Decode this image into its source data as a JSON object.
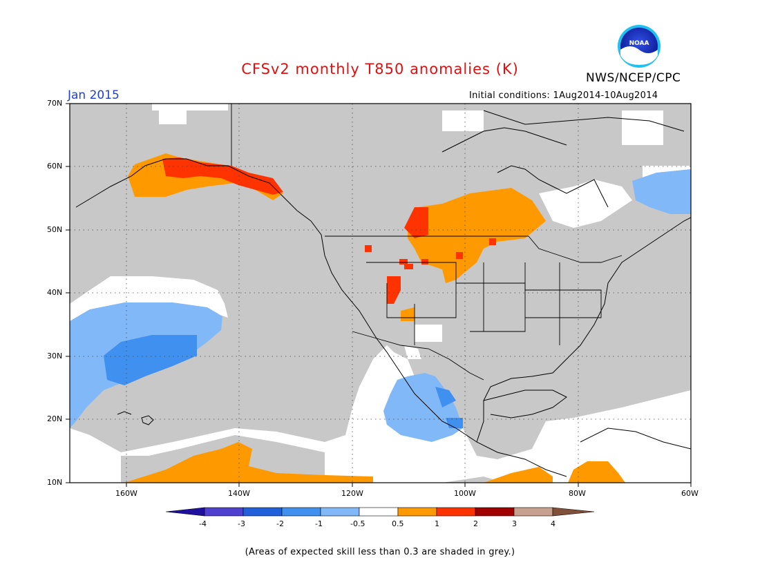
{
  "header": {
    "title": "CFSv2 monthly T850 anomalies (K)",
    "agency": "NWS/NCEP/CPC",
    "logo_text": "NOAA",
    "period": "Jan 2015",
    "initial_conditions": "Initial conditions: 1Aug2014-10Aug2014"
  },
  "map": {
    "lat_labels": [
      "70N",
      "60N",
      "50N",
      "40N",
      "30N",
      "20N",
      "10N"
    ],
    "lon_labels": [
      "160W",
      "140W",
      "120W",
      "100W",
      "80W",
      "60W"
    ],
    "lon_range": [
      -170,
      -60
    ],
    "lat_range": [
      10,
      70
    ],
    "background_color": "#c8c8c8",
    "anomaly_regions": [
      {
        "category": "0.5 to 1",
        "color": "#ff9900",
        "location": "Southern Alaska"
      },
      {
        "category": "1 to 2",
        "color": "#ff3300",
        "location": "Southern Alaska coast"
      },
      {
        "category": "0.5 to 1",
        "color": "#ff9900",
        "location": "Northern Plains / Manitoba"
      },
      {
        "category": "1 to 2",
        "color": "#ff3300",
        "location": "Saskatchewan / Montana"
      },
      {
        "category": "-1 to -0.5",
        "color": "#80b8f8",
        "location": "Eastern North Pacific"
      },
      {
        "category": "-2 to -1",
        "color": "#4090f0",
        "location": "Central North Pacific"
      },
      {
        "category": "-1 to -0.5",
        "color": "#80b8f8",
        "location": "Mexico"
      },
      {
        "category": "-1 to -0.5",
        "color": "#80b8f8",
        "location": "Labrador"
      },
      {
        "category": "0.5 to 1",
        "color": "#ff9900",
        "location": "Tropical Pacific near 10N"
      }
    ]
  },
  "colorbar": {
    "labels": [
      "-4",
      "-3",
      "-2",
      "-1",
      "-0.5",
      "0.5",
      "1",
      "2",
      "3",
      "4"
    ],
    "colors": [
      "#2010a0",
      "#5040d0",
      "#2060d8",
      "#4090f0",
      "#80b8f8",
      "#ffffff",
      "#ff9900",
      "#ff3300",
      "#a00000",
      "#c8a090",
      "#80503a"
    ]
  },
  "footnote": "(Areas of expected skill less than 0.3 are shaded in grey.)"
}
